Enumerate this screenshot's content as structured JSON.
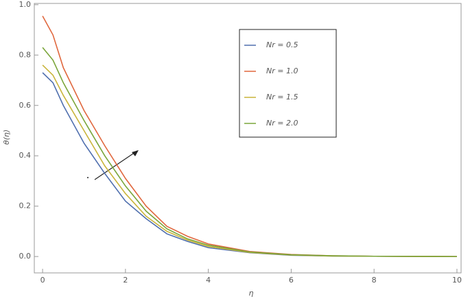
{
  "chart_data": {
    "type": "line",
    "x_label": "η",
    "y_label": "θ(η)",
    "x": [
      0,
      0.25,
      0.5,
      1,
      1.5,
      2,
      2.5,
      3,
      3.5,
      4,
      5,
      6,
      7,
      8,
      10
    ],
    "series": [
      {
        "name": "Nr = 0.5",
        "color": "#4f6fae",
        "values": [
          0.73,
          0.69,
          0.6,
          0.45,
          0.33,
          0.22,
          0.15,
          0.09,
          0.06,
          0.035,
          0.015,
          0.005,
          0.002,
          0.001,
          0
        ]
      },
      {
        "name": "Nr = 1.0",
        "color": "#e0673d",
        "values": [
          0.955,
          0.88,
          0.75,
          0.58,
          0.44,
          0.31,
          0.2,
          0.12,
          0.08,
          0.05,
          0.02,
          0.008,
          0.003,
          0.001,
          0
        ]
      },
      {
        "name": "Nr = 1.5",
        "color": "#c9b43a",
        "values": [
          0.76,
          0.72,
          0.64,
          0.5,
          0.36,
          0.25,
          0.16,
          0.1,
          0.065,
          0.04,
          0.016,
          0.006,
          0.002,
          0.001,
          0
        ]
      },
      {
        "name": "Nr = 2.0",
        "color": "#7aa53a",
        "values": [
          0.83,
          0.78,
          0.69,
          0.54,
          0.4,
          0.28,
          0.18,
          0.11,
          0.07,
          0.045,
          0.018,
          0.007,
          0.003,
          0.001,
          0
        ]
      }
    ],
    "xlim": [
      -0.2,
      10.1
    ],
    "ylim": [
      -0.065,
      1.005
    ],
    "xticks": [
      0,
      2,
      4,
      6,
      8,
      10
    ],
    "yticks": [
      {
        "value": 0,
        "label": "0.0"
      },
      {
        "value": 0.2,
        "label": "0.2"
      },
      {
        "value": 0.4,
        "label": "0.4"
      },
      {
        "value": 0.6,
        "label": "0.6"
      },
      {
        "value": 0.8,
        "label": "0.8"
      },
      {
        "value": 1,
        "label": "1.0"
      }
    ]
  }
}
